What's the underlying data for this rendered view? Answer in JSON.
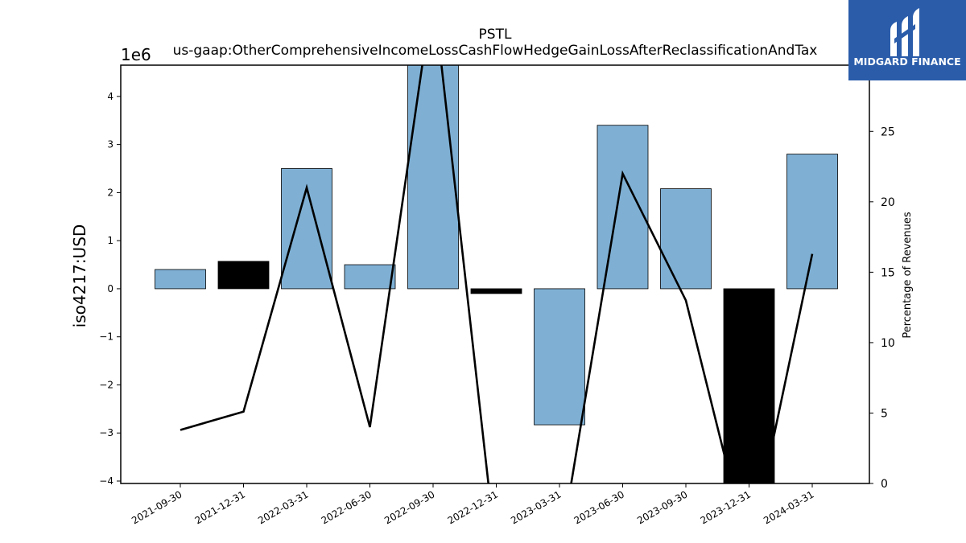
{
  "title_line1": "PSTL",
  "title_line2": "us-gaap:OtherComprehensiveIncomeLossCashFlowHedgeGainLossAfterReclassificationAndTax",
  "offset_label": "1e6",
  "logo": {
    "text": "MIDGARD FINANCE",
    "bg_color": "#2a5caa"
  },
  "colors": {
    "positive_bar": "#7fb0d4",
    "negative_bar": "#000000",
    "line": "#000000"
  },
  "chart_data": {
    "type": "bar",
    "categories": [
      "2021-09-30",
      "2021-12-31",
      "2022-03-31",
      "2022-06-30",
      "2022-09-30",
      "2022-12-31",
      "2023-03-31",
      "2023-06-30",
      "2023-09-30",
      "2023-12-31",
      "2024-03-31"
    ],
    "series": [
      {
        "name": "",
        "axis": "left",
        "type": "bar",
        "values": [
          0.4,
          0.57,
          2.5,
          0.5,
          4.8,
          -0.1,
          -2.83,
          3.4,
          2.08,
          -4.2,
          2.8
        ],
        "bar_colors": [
          "#7fb0d4",
          "#000000",
          "#7fb0d4",
          "#7fb0d4",
          "#7fb0d4",
          "#000000",
          "#7fb0d4",
          "#7fb0d4",
          "#7fb0d4",
          "#000000",
          "#7fb0d4"
        ]
      },
      {
        "name": "",
        "axis": "right",
        "type": "line",
        "values": [
          3.8,
          5.1,
          21.0,
          4.0,
          35.0,
          -5.0,
          -5.0,
          22.0,
          13.0,
          -5.0,
          16.3
        ]
      }
    ],
    "ylabel": "iso4217:USD",
    "y2label": "Percentage of Revenues",
    "ylim": [
      -4.05,
      4.65
    ],
    "y2lim": [
      0,
      29.7
    ],
    "yticks": [
      -4,
      -3,
      -2,
      -1,
      0,
      1,
      2,
      3,
      4
    ],
    "y2ticks": [
      0,
      5,
      10,
      15,
      20,
      25
    ],
    "grid": false
  }
}
